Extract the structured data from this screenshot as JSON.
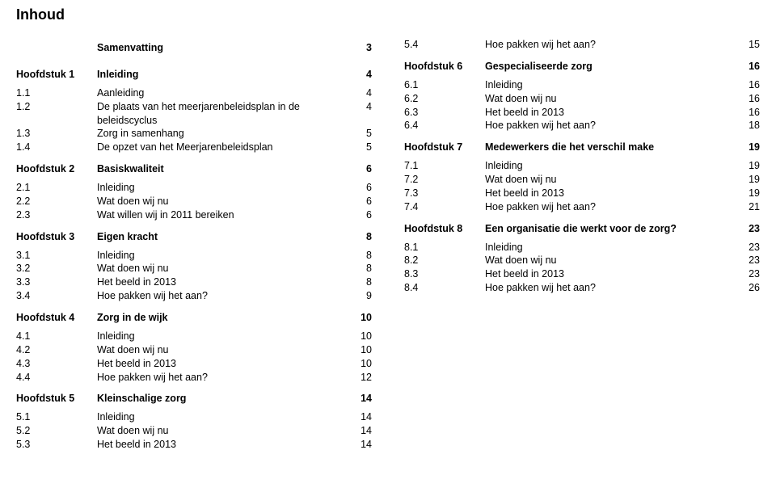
{
  "title": "Inhoud",
  "left": [
    {
      "type": "section",
      "first": true,
      "num": "",
      "text": "Samenvatting",
      "page": "3"
    },
    {
      "type": "section",
      "num": "Hoofdstuk 1",
      "text": "Inleiding",
      "page": "4"
    },
    {
      "type": "row",
      "num": "1.1",
      "text": "Aanleiding",
      "page": "4"
    },
    {
      "type": "row",
      "num": "1.2",
      "text": "De plaats van het meerjarenbeleidsplan in de beleidscyclus",
      "page": "4"
    },
    {
      "type": "row",
      "num": "1.3",
      "text": "Zorg in samenhang",
      "page": "5"
    },
    {
      "type": "row",
      "num": "1.4",
      "text": "De opzet van het Meerjarenbeleidsplan",
      "page": "5"
    },
    {
      "type": "section",
      "num": "Hoofdstuk 2",
      "text": "Basiskwaliteit",
      "page": "6"
    },
    {
      "type": "row",
      "num": "2.1",
      "text": "Inleiding",
      "page": "6"
    },
    {
      "type": "row",
      "num": "2.2",
      "text": "Wat doen wij nu",
      "page": "6"
    },
    {
      "type": "row",
      "num": "2.3",
      "text": "Wat willen wij in 2011 bereiken",
      "page": "6"
    },
    {
      "type": "section",
      "num": "Hoofdstuk 3",
      "text": "Eigen kracht",
      "page": "8"
    },
    {
      "type": "row",
      "num": "3.1",
      "text": "Inleiding",
      "page": "8"
    },
    {
      "type": "row",
      "num": "3.2",
      "text": "Wat doen wij nu",
      "page": "8"
    },
    {
      "type": "row",
      "num": "3.3",
      "text": "Het beeld in 2013",
      "page": "8"
    },
    {
      "type": "row",
      "num": "3.4",
      "text": "Hoe pakken wij het aan?",
      "page": "9"
    },
    {
      "type": "section",
      "num": "Hoofdstuk 4",
      "text": "Zorg in de wijk",
      "page": "10"
    },
    {
      "type": "row",
      "num": "4.1",
      "text": "Inleiding",
      "page": "10"
    },
    {
      "type": "row",
      "num": "4.2",
      "text": "Wat doen wij nu",
      "page": "10"
    },
    {
      "type": "row",
      "num": "4.3",
      "text": "Het beeld in 2013",
      "page": "10"
    },
    {
      "type": "row",
      "num": "4.4",
      "text": "Hoe pakken wij het aan?",
      "page": "12"
    },
    {
      "type": "section",
      "num": "Hoofdstuk 5",
      "text": "Kleinschalige zorg",
      "page": "14"
    },
    {
      "type": "row",
      "num": "5.1",
      "text": "Inleiding",
      "page": "14"
    },
    {
      "type": "row",
      "num": "5.2",
      "text": "Wat doen wij nu",
      "page": "14"
    },
    {
      "type": "row",
      "num": "5.3",
      "text": "Het beeld in 2013",
      "page": "14"
    }
  ],
  "right": [
    {
      "type": "row",
      "first": true,
      "num": "5.4",
      "text": "Hoe pakken wij het aan?",
      "page": "15"
    },
    {
      "type": "section",
      "num": "Hoofdstuk 6",
      "text": "Gespecialiseerde zorg",
      "page": "16"
    },
    {
      "type": "row",
      "num": "6.1",
      "text": "Inleiding",
      "page": "16"
    },
    {
      "type": "row",
      "num": "6.2",
      "text": "Wat doen wij nu",
      "page": "16"
    },
    {
      "type": "row",
      "num": "6.3",
      "text": "Het beeld in 2013",
      "page": "16"
    },
    {
      "type": "row",
      "num": "6.4",
      "text": "Hoe pakken wij het aan?",
      "page": "18"
    },
    {
      "type": "section",
      "num": "Hoofdstuk 7",
      "text": "Medewerkers die het verschil make",
      "page": "19"
    },
    {
      "type": "row",
      "num": "7.1",
      "text": "Inleiding",
      "page": "19"
    },
    {
      "type": "row",
      "num": "7.2",
      "text": "Wat doen wij nu",
      "page": "19"
    },
    {
      "type": "row",
      "num": "7.3",
      "text": "Het beeld in 2013",
      "page": "19"
    },
    {
      "type": "row",
      "num": "7.4",
      "text": "Hoe pakken wij het aan?",
      "page": "21"
    },
    {
      "type": "section",
      "num": "Hoofdstuk 8",
      "text": "Een organisatie die werkt voor de zorg?",
      "page": "23"
    },
    {
      "type": "row",
      "num": "8.1",
      "text": "Inleiding",
      "page": "23"
    },
    {
      "type": "row",
      "num": "8.2",
      "text": "Wat doen wij nu",
      "page": "23"
    },
    {
      "type": "row",
      "num": "8.3",
      "text": "Het beeld in 2013",
      "page": "23"
    },
    {
      "type": "row",
      "num": "8.4",
      "text": "Hoe pakken wij het aan?",
      "page": "26"
    }
  ]
}
